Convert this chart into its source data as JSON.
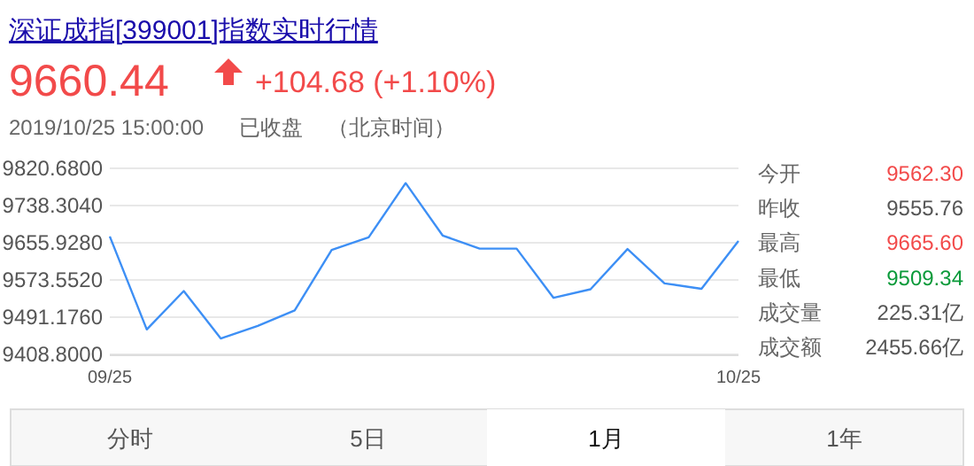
{
  "chart_data": [
    {
      "type": "line",
      "title": "深证成指[399001]指数实时行情",
      "annotations": [
        "9660.44",
        "+104.68 (+1.10%)",
        "2019/10/25 15:00:00",
        "已收盘",
        "（北京时间）"
      ],
      "categories": [
        "09/25",
        null,
        null,
        null,
        null,
        null,
        null,
        null,
        null,
        null,
        null,
        null,
        null,
        null,
        null,
        null,
        null,
        "10/25"
      ],
      "series": [
        {
          "color": "#3d8ff5",
          "values": [
            9670,
            9464,
            9549,
            9444,
            9472,
            9506,
            9640,
            9668,
            9788,
            9672,
            9643,
            9643,
            9534,
            9553,
            9642,
            9566,
            9554,
            9660
          ]
        }
      ],
      "ylim": [
        9408.8,
        9820.68
      ],
      "yticks": [
        {
          "value": 9408.8,
          "label": "9408.8000"
        },
        {
          "value": 9491.176,
          "label": "9491.1760"
        },
        {
          "value": 9573.552,
          "label": "9573.5520"
        },
        {
          "value": 9655.928,
          "label": "9655.9280"
        },
        {
          "value": 9738.304,
          "label": "9738.3040"
        },
        {
          "value": 9820.68,
          "label": "9820.6800"
        }
      ],
      "grid": "y",
      "marker": "none",
      "line_style": "solid"
    },
    {
      "type": "other",
      "annotations": [
        "今开",
        "9562.30",
        "昨收",
        "9555.76",
        "最高",
        "9665.60",
        "最低",
        "9509.34",
        "成交量",
        "225.31亿",
        "成交额",
        "2455.66亿"
      ],
      "colors": [
        "#666666",
        "#f24a4a",
        "#666666",
        "#555555",
        "#666666",
        "#f24a4a",
        "#666666",
        "#0a9a3a",
        "#666666",
        "#555555",
        "#666666",
        "#555555"
      ]
    },
    {
      "type": "other",
      "annotations": [
        "分时",
        "5日",
        "1月",
        "1年"
      ]
    }
  ]
}
